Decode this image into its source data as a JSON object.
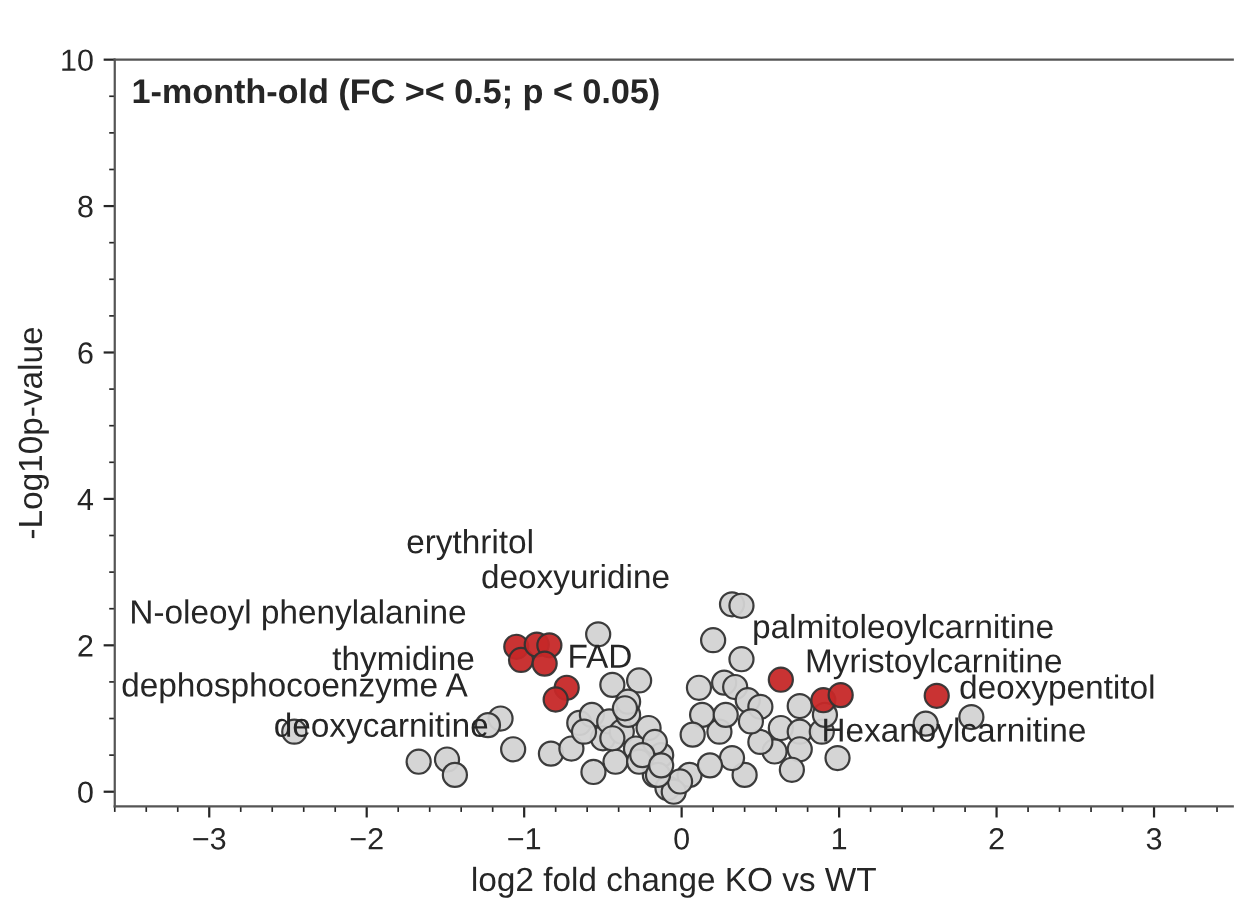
{
  "chart_data": {
    "type": "scatter",
    "title": "1-month-old (FC >< 0.5; p < 0.05)",
    "xlabel": "log2 fold change KO vs WT",
    "ylabel": "-Log10p-value",
    "xlim": [
      -3.6,
      3.5
    ],
    "ylim": [
      -0.2,
      10
    ],
    "xticks": [
      -3,
      -2,
      -1,
      0,
      1,
      2,
      3
    ],
    "yticks": [
      0,
      2,
      4,
      6,
      8,
      10
    ],
    "grid": false,
    "marker": "circle",
    "series": [
      {
        "color": "#d3d3d3",
        "x": [
          -0.53,
          -0.44,
          -0.27,
          -1.15,
          -1.23,
          -2.46,
          -1.07,
          -1.67,
          -1.49,
          -1.44,
          -0.83,
          -0.65,
          -0.57,
          -0.7,
          -0.56,
          -0.5,
          -0.46,
          -0.38,
          -0.34,
          -0.29,
          -0.42,
          -0.21,
          -0.17,
          -0.13,
          -0.09,
          -0.62,
          -0.34,
          -0.27,
          -0.17,
          0.32,
          0.38,
          0.2,
          0.38,
          0.11,
          0.27,
          0.34,
          0.42,
          0.5,
          0.75,
          0.63,
          0.75,
          0.75,
          0.89,
          0.91,
          0.99,
          0.7,
          1.55,
          1.84,
          0.59,
          0.5,
          0.4,
          0.32,
          0.24,
          0.13,
          0.07,
          0.05,
          -0.05,
          -0.01,
          0.18,
          0.28,
          0.44,
          -0.36,
          -0.44,
          -0.25,
          -0.15,
          -0.13
        ],
        "values": [
          2.15,
          1.46,
          1.52,
          1.0,
          0.91,
          0.82,
          0.58,
          0.41,
          0.44,
          0.23,
          0.52,
          0.94,
          1.05,
          0.59,
          0.27,
          0.73,
          0.96,
          0.82,
          1.05,
          0.59,
          0.41,
          0.87,
          0.23,
          0.5,
          0.05,
          0.82,
          1.23,
          0.41,
          0.68,
          2.56,
          2.54,
          2.07,
          1.81,
          1.42,
          1.49,
          1.43,
          1.25,
          1.16,
          1.17,
          0.87,
          0.82,
          0.58,
          0.82,
          1.05,
          0.46,
          0.3,
          0.93,
          1.02,
          0.55,
          0.68,
          0.23,
          0.46,
          0.82,
          1.05,
          0.78,
          0.23,
          0.0,
          0.14,
          0.36,
          1.05,
          0.96,
          1.14,
          0.73,
          0.5,
          0.23,
          0.36
        ]
      },
      {
        "color": "#c62828",
        "x": [
          -1.05,
          -1.02,
          -0.92,
          -0.84,
          -0.87,
          -0.73,
          -0.8,
          0.63,
          0.9,
          1.01,
          1.62
        ],
        "values": [
          1.98,
          1.8,
          2.01,
          2.0,
          1.75,
          1.42,
          1.26,
          1.53,
          1.25,
          1.32,
          1.31
        ]
      }
    ],
    "annotations": [
      {
        "text": "erythritol",
        "x": -0.92,
        "y": 2.01
      },
      {
        "text": "deoxyuridine",
        "x": -0.84,
        "y": 2.0
      },
      {
        "text": "N-oleoyl phenylalanine",
        "x": -1.05,
        "y": 1.98
      },
      {
        "text": "thymidine",
        "x": -1.02,
        "y": 1.8
      },
      {
        "text": "FAD",
        "x": -0.87,
        "y": 1.75
      },
      {
        "text": "dephosphocoenzyme A",
        "x": -0.73,
        "y": 1.42
      },
      {
        "text": "deoxycarnitine",
        "x": -0.8,
        "y": 1.26
      },
      {
        "text": "palmitoleoylcarnitine",
        "x": 0.63,
        "y": 1.53
      },
      {
        "text": "Myristoylcarnitine",
        "x": 1.01,
        "y": 1.32
      },
      {
        "text": "deoxypentitol",
        "x": 1.62,
        "y": 1.31
      },
      {
        "text": "Hexanoylcarnitine",
        "x": 0.9,
        "y": 1.25
      }
    ]
  }
}
